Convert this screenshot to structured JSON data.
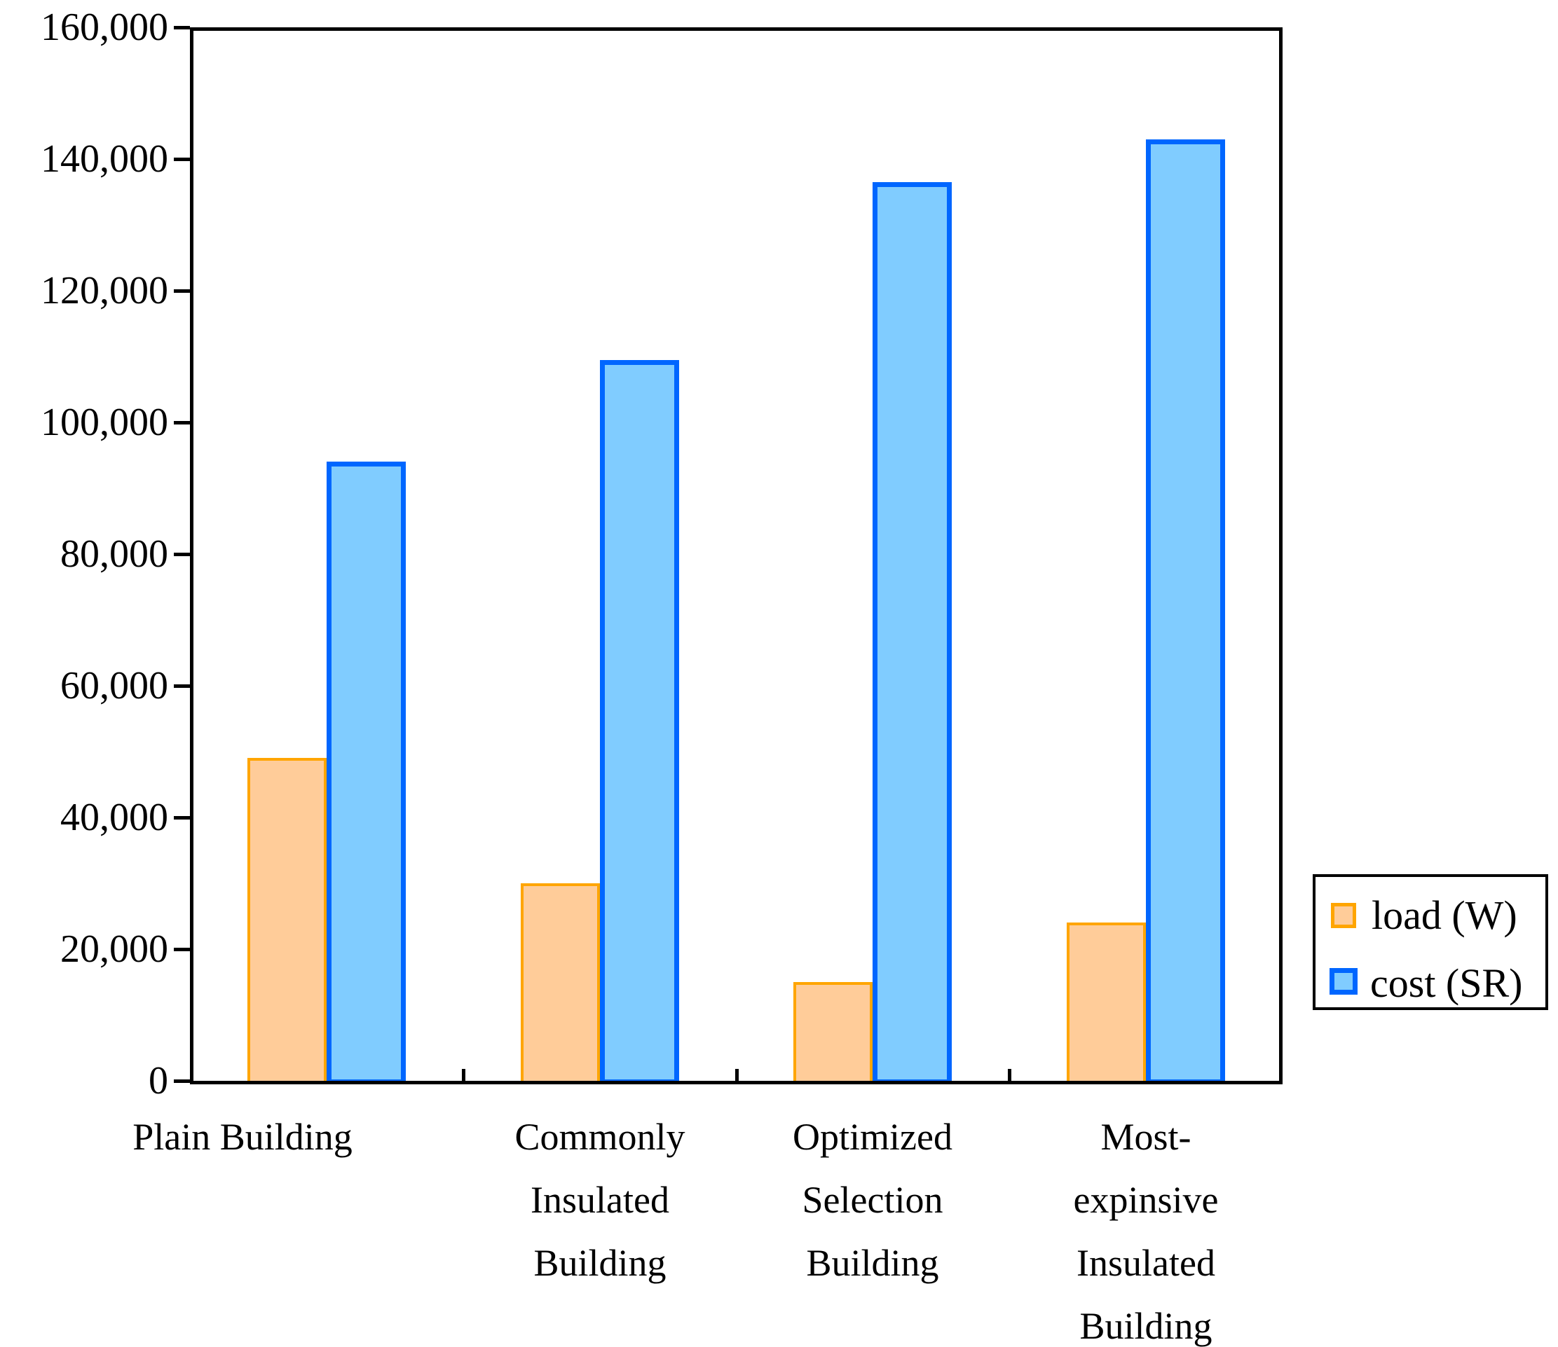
{
  "chart_data": {
    "type": "bar",
    "categories": [
      "Plain Building",
      "Commonly\nInsulated\nBuilding",
      "Optimized\nSelection\nBuilding",
      "Most-\nexpinsive\nInsulated\nBuilding"
    ],
    "series": [
      {
        "name": "load (W)",
        "fill_color": "#FFCC99",
        "border_color": "#FFA500",
        "values": [
          49000,
          30000,
          15000,
          24000
        ]
      },
      {
        "name": "cost (SR)",
        "fill_color": "#80CCFF",
        "border_color": "#0066FF",
        "values": [
          94000,
          109500,
          136500,
          143000
        ]
      }
    ],
    "title": "",
    "xlabel": "",
    "ylabel": "",
    "ylim": [
      0,
      160000
    ],
    "ytick_step": 20000,
    "ytick_labels": [
      "0",
      "20,000",
      "40,000",
      "60,000",
      "80,000",
      "100,000",
      "120,000",
      "140,000",
      "160,000"
    ],
    "grid": false,
    "legend_position": "right",
    "axis_color": "#000000",
    "background_color": "#FFFFFF"
  }
}
